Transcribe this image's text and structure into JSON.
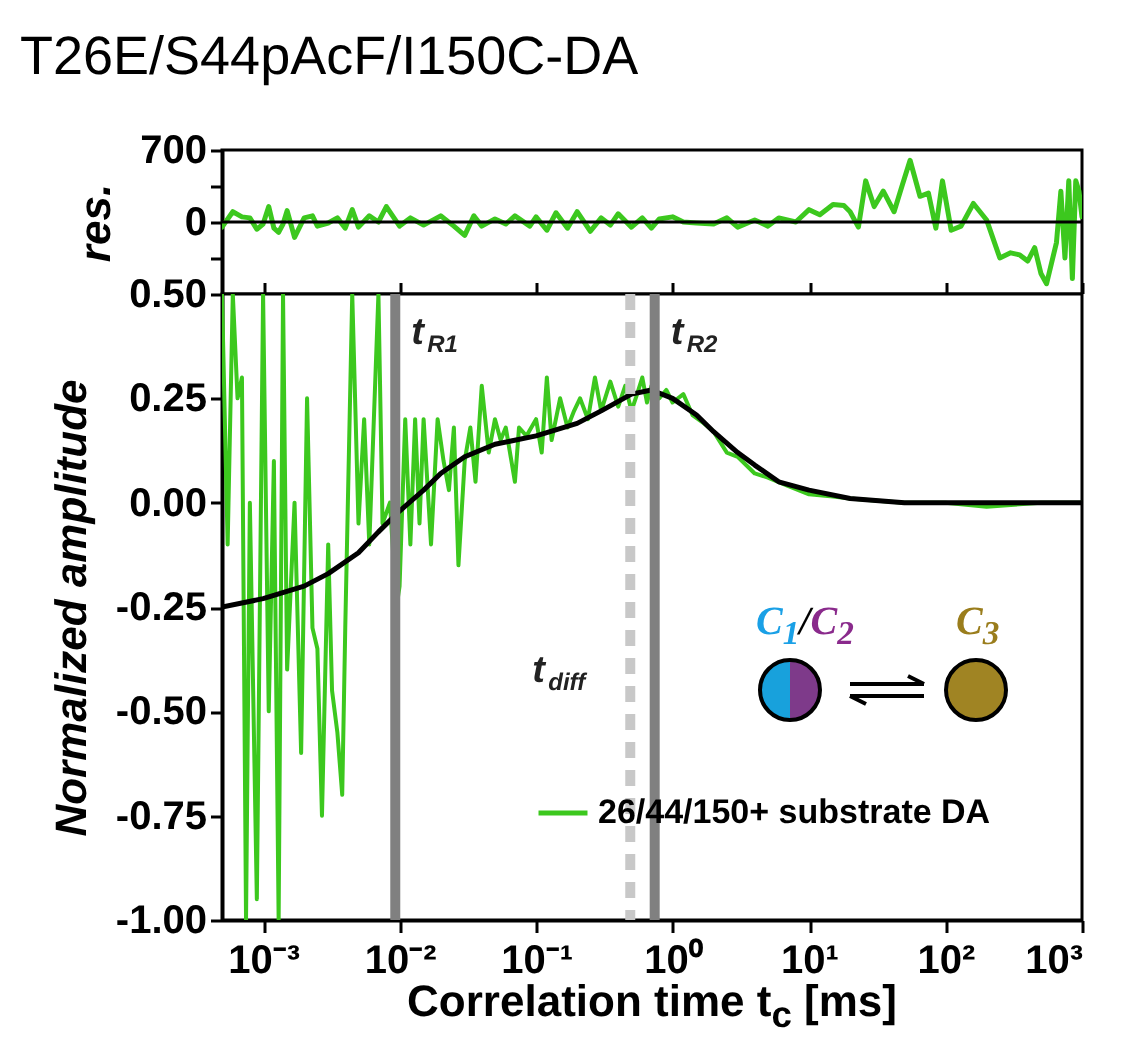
{
  "chart_data": [
    {
      "type": "line",
      "title": "T26E/S44pAcF/I150C-DA",
      "ylabel": "res.",
      "log": "x",
      "xlim": [
        0.0005,
        1000
      ],
      "xticks": [
        0.001,
        0.01,
        0.1,
        1,
        10,
        100,
        1000
      ],
      "ylim": [
        -700,
        700
      ],
      "yticks": [
        {
          "value": -350,
          "label": null
        },
        0,
        {
          "value": 350,
          "label": null
        },
        700
      ],
      "tick_labels": "y",
      "x": [
        0.0005,
        0.0006,
        0.0007,
        0.0008,
        0.0009,
        0.001,
        0.0011,
        0.0012,
        0.0013,
        0.0014,
        0.0015,
        0.0017,
        0.002,
        0.0023,
        0.0025,
        0.003,
        0.0035,
        0.004,
        0.0045,
        0.005,
        0.006,
        0.007,
        0.008,
        0.01,
        0.012,
        0.015,
        0.02,
        0.025,
        0.03,
        0.035,
        0.04,
        0.05,
        0.06,
        0.07,
        0.09,
        0.1,
        0.12,
        0.14,
        0.17,
        0.2,
        0.25,
        0.3,
        0.35,
        0.4,
        0.5,
        0.6,
        0.7,
        0.8,
        1,
        1.2,
        1.5,
        2,
        2.5,
        3,
        4,
        5,
        6,
        8,
        10,
        12,
        15,
        18,
        20,
        23,
        26,
        30,
        35,
        42,
        48,
        55,
        65,
        75,
        85,
        95,
        110,
        130,
        160,
        200,
        250,
        300,
        350,
        400,
        450,
        500,
        550,
        650,
        700,
        750,
        800,
        850,
        900,
        950,
        1000
      ],
      "series": [
        {
          "color": "#3cc81e",
          "values": [
            -50,
            100,
            50,
            40,
            -70,
            -20,
            150,
            -60,
            -100,
            -20,
            110,
            -150,
            40,
            60,
            -40,
            -10,
            40,
            -60,
            120,
            -50,
            60,
            0,
            150,
            -40,
            40,
            -30,
            60,
            -40,
            -130,
            60,
            -40,
            30,
            -20,
            60,
            -40,
            50,
            -80,
            90,
            -60,
            100,
            -90,
            40,
            -30,
            80,
            -50,
            40,
            -60,
            30,
            50,
            0,
            -10,
            -20,
            40,
            -50,
            20,
            -40,
            40,
            0,
            120,
            70,
            170,
            160,
            100,
            -50,
            400,
            150,
            300,
            100,
            350,
            600,
            250,
            280,
            -60,
            400,
            -80,
            -40,
            180,
            20,
            -350,
            -300,
            -320,
            -380,
            -250,
            -500,
            -600,
            -200,
            300,
            -350,
            400,
            -550,
            400,
            300,
            50
          ]
        }
      ],
      "ref_lines": [
        {
          "axis": "y",
          "value": 0,
          "color": "#000000"
        }
      ]
    },
    {
      "type": "line",
      "xlabel": "Correlation time t$_{c}$ [ms]",
      "ylabel": "Normalized amplitude",
      "log": "x",
      "xlim": [
        0.0005,
        1000
      ],
      "xticks": [
        {
          "value": 0.001,
          "label": "10⁻³"
        },
        {
          "value": 0.01,
          "label": "10⁻²"
        },
        {
          "value": 0.1,
          "label": "10⁻¹"
        },
        {
          "value": 1,
          "label": "10⁰"
        },
        {
          "value": 10,
          "label": "10¹"
        },
        {
          "value": 100,
          "label": "10²"
        },
        {
          "value": 1000,
          "label": "10³"
        }
      ],
      "ylim": [
        -1,
        0.5
      ],
      "yticks": [
        {
          "value": -1,
          "label": "-1.00"
        },
        {
          "value": -0.75,
          "label": "-0.75"
        },
        {
          "value": -0.5,
          "label": "-0.50"
        },
        {
          "value": -0.25,
          "label": "-0.25"
        },
        {
          "value": 0,
          "label": "0.00"
        },
        {
          "value": 0.25,
          "label": "0.25"
        },
        {
          "value": 0.5,
          "label": "0.50"
        }
      ],
      "legend": "bottom right",
      "series": [
        {
          "name": "26/44/150+ substrate DA",
          "color": "#3cc81e",
          "x": [
            0.0005,
            0.00055,
            0.0006,
            0.00065,
            0.0007,
            0.00075,
            0.0008,
            0.0009,
            0.001,
            0.0011,
            0.0012,
            0.0013,
            0.0014,
            0.0015,
            0.0017,
            0.0019,
            0.0021,
            0.0023,
            0.0025,
            0.0027,
            0.003,
            0.0032,
            0.0035,
            0.0038,
            0.004,
            0.0045,
            0.005,
            0.0055,
            0.006,
            0.007,
            0.0075,
            0.0085,
            0.0095,
            0.01,
            0.011,
            0.012,
            0.013,
            0.014,
            0.015,
            0.017,
            0.019,
            0.021,
            0.023,
            0.025,
            0.027,
            0.03,
            0.033,
            0.036,
            0.04,
            0.045,
            0.05,
            0.055,
            0.06,
            0.07,
            0.075,
            0.085,
            0.1,
            0.11,
            0.12,
            0.13,
            0.15,
            0.17,
            0.19,
            0.21,
            0.24,
            0.27,
            0.3,
            0.35,
            0.4,
            0.45,
            0.5,
            0.55,
            0.6,
            0.65,
            0.7,
            0.8,
            0.9,
            1,
            1.2,
            1.4,
            1.7,
            2,
            2.5,
            3,
            4,
            5,
            7,
            10,
            15,
            20,
            30,
            50,
            100,
            200,
            500,
            1000
          ],
          "values": [
            0.5,
            -0.1,
            0.5,
            0.25,
            0.3,
            -1,
            0,
            -0.95,
            0.5,
            -0.5,
            0.1,
            -1,
            0.5,
            -0.4,
            0,
            -0.6,
            0.25,
            -0.3,
            -0.35,
            -0.75,
            -0.1,
            -0.45,
            -0.55,
            -0.7,
            -0.3,
            0.5,
            -0.05,
            0.2,
            -0.1,
            0.5,
            -0.05,
            0,
            -0.25,
            -0.2,
            0.2,
            -0.1,
            0.2,
            -0.05,
            0.2,
            -0.1,
            0.2,
            0.1,
            0.03,
            0.18,
            -0.15,
            0.1,
            0.18,
            0.05,
            0.28,
            0.12,
            0.2,
            0.15,
            0.18,
            0.05,
            0.18,
            0.16,
            0.2,
            0.12,
            0.3,
            0.15,
            0.25,
            0.18,
            0.22,
            0.25,
            0.2,
            0.3,
            0.22,
            0.29,
            0.23,
            0.28,
            0.22,
            0.26,
            0.3,
            0.24,
            0.28,
            0.25,
            0.27,
            0.24,
            0.26,
            0.21,
            0.19,
            0.17,
            0.12,
            0.11,
            0.07,
            0.06,
            0.04,
            0.02,
            0.015,
            0.01,
            0.005,
            0,
            0,
            -0.01,
            0,
            0
          ]
        },
        {
          "color": "#000000",
          "x": [
            0.0005,
            0.001,
            0.002,
            0.003,
            0.005,
            0.007,
            0.01,
            0.015,
            0.02,
            0.03,
            0.05,
            0.1,
            0.2,
            0.3,
            0.5,
            0.7,
            1,
            1.5,
            2,
            3,
            4,
            6,
            10,
            20,
            50,
            100,
            1000
          ],
          "values": [
            -0.25,
            -0.23,
            -0.2,
            -0.17,
            -0.12,
            -0.07,
            -0.02,
            0.03,
            0.07,
            0.11,
            0.14,
            0.16,
            0.19,
            0.22,
            0.26,
            0.27,
            0.25,
            0.21,
            0.17,
            0.12,
            0.09,
            0.05,
            0.03,
            0.01,
            0,
            0,
            0
          ]
        }
      ],
      "ref_lines": [
        {
          "axis": "x",
          "value": 0.0093,
          "label": "t$_{R1}$",
          "color": "#808080"
        },
        {
          "axis": "x",
          "value": 0.49,
          "label": "t$_{diff}$",
          "color": "#c8c8c8",
          "line_style": "dashed"
        },
        {
          "axis": "x",
          "value": 0.74,
          "label": "t$_{R2}$",
          "color": "#808080"
        }
      ],
      "annotations": [
        "C$_{1}$/C$_{2}$",
        "C$_{3}$"
      ]
    }
  ]
}
